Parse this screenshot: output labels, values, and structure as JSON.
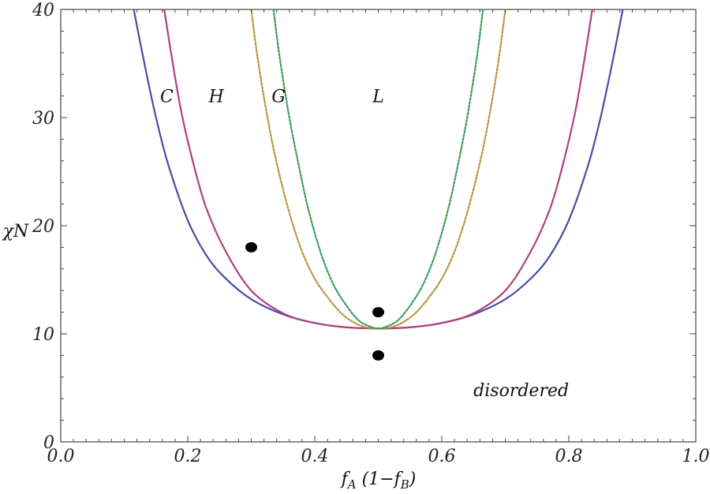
{
  "chart_data": {
    "type": "line",
    "xlabel": "f_A  (1−f_B)",
    "ylabel": "χN",
    "xlim": [
      0.0,
      1.0
    ],
    "ylim": [
      0,
      40
    ],
    "x_major_ticks": [
      0.0,
      0.2,
      0.4,
      0.6,
      0.8,
      1.0
    ],
    "x_tick_labels": [
      "0.0",
      "0.2",
      "0.4",
      "0.6",
      "0.8",
      "1.0"
    ],
    "y_major_ticks": [
      0,
      10,
      20,
      30,
      40
    ],
    "y_tick_labels": [
      "0",
      "10",
      "20",
      "30",
      "40"
    ],
    "grid": false,
    "series": [
      {
        "color": "#4a4aa8",
        "style": "solid",
        "x": [
          0.115,
          0.13,
          0.15,
          0.17,
          0.2,
          0.23,
          0.26,
          0.3,
          0.35,
          0.4,
          0.45,
          0.5,
          0.55,
          0.6,
          0.65,
          0.7,
          0.74,
          0.77,
          0.8,
          0.83,
          0.85,
          0.87,
          0.885
        ],
        "y": [
          40,
          35.5,
          30,
          25.5,
          20.5,
          17.2,
          15.1,
          13.2,
          11.8,
          11.0,
          10.6,
          10.5,
          10.6,
          11.0,
          11.8,
          13.2,
          15.1,
          17.2,
          20.5,
          25.5,
          30,
          35.5,
          40
        ]
      },
      {
        "color": "#b0407a",
        "style": "solid",
        "x": [
          0.163,
          0.175,
          0.19,
          0.21,
          0.23,
          0.26,
          0.3,
          0.35,
          0.4,
          0.45,
          0.5,
          0.55,
          0.6,
          0.65,
          0.7,
          0.74,
          0.77,
          0.79,
          0.81,
          0.825,
          0.837
        ],
        "y": [
          40,
          35.5,
          30.5,
          25.5,
          21.5,
          17.6,
          14.0,
          11.9,
          11.0,
          10.6,
          10.5,
          10.6,
          11.0,
          11.9,
          14.0,
          17.6,
          21.5,
          25.5,
          30.5,
          35.5,
          40
        ]
      },
      {
        "color": "#b8953c",
        "style": "dotted",
        "x": [
          0.3,
          0.31,
          0.325,
          0.34,
          0.36,
          0.38,
          0.4,
          0.42,
          0.44,
          0.46,
          0.48,
          0.5,
          0.52,
          0.54,
          0.56,
          0.58,
          0.6,
          0.62,
          0.64,
          0.66,
          0.675,
          0.69,
          0.7
        ],
        "y": [
          40,
          35.5,
          30.2,
          25.8,
          21.2,
          17.6,
          15.1,
          13.4,
          12.0,
          11.1,
          10.6,
          10.5,
          10.6,
          11.1,
          12.0,
          13.4,
          15.1,
          17.6,
          21.2,
          25.8,
          30.2,
          35.5,
          40
        ]
      },
      {
        "color": "#3a9e58",
        "style": "dotted",
        "x": [
          0.335,
          0.345,
          0.36,
          0.375,
          0.39,
          0.41,
          0.43,
          0.45,
          0.47,
          0.49,
          0.5,
          0.51,
          0.53,
          0.55,
          0.57,
          0.59,
          0.61,
          0.625,
          0.64,
          0.655,
          0.665
        ],
        "y": [
          40,
          35.5,
          30.0,
          25.5,
          21.5,
          17.4,
          14.5,
          12.6,
          11.2,
          10.6,
          10.5,
          10.6,
          11.2,
          12.6,
          14.5,
          17.4,
          21.5,
          25.5,
          30.0,
          35.5,
          40
        ]
      }
    ],
    "points": [
      {
        "x": 0.3,
        "y": 18
      },
      {
        "x": 0.5,
        "y": 12
      },
      {
        "x": 0.5,
        "y": 8
      }
    ],
    "annotations": [
      {
        "text": "C",
        "x": 0.167,
        "y": 32
      },
      {
        "text": "H",
        "x": 0.245,
        "y": 32
      },
      {
        "text": "G",
        "x": 0.343,
        "y": 32
      },
      {
        "text": "L",
        "x": 0.5,
        "y": 32
      },
      {
        "text": "disordered",
        "x": 0.725,
        "y": 4.8
      }
    ]
  }
}
